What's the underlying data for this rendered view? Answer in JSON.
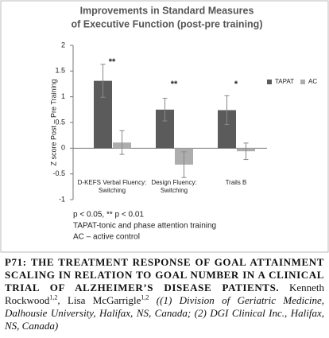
{
  "chart_data": {
    "type": "bar",
    "title": [
      "Improvements in Standard Measures",
      "of Executive Function (post-pre training)"
    ],
    "y_label": "Z score Post – Pre Training",
    "categories": [
      "D-KEFS Verbal Fluency: Switching",
      "Design Fluency: Switching",
      "Trails B"
    ],
    "series": [
      {
        "name": "TAPAT",
        "color": "#5b5b5b",
        "values": [
          1.31,
          0.75,
          0.74
        ],
        "errors": [
          0.32,
          0.22,
          0.28
        ]
      },
      {
        "name": "AC",
        "color": "#adadad",
        "values": [
          0.11,
          -0.32,
          -0.06
        ],
        "errors": [
          0.23,
          0.25,
          0.16
        ]
      }
    ],
    "annotations": [
      "**",
      "**",
      "*"
    ],
    "notes": [
      "p < 0.05, ** p < 0.01",
      "TAPAT-tonic and phase attention training",
      "AC – active control"
    ],
    "ylim": [
      -1,
      2
    ],
    "yticks": [
      -1,
      -0.5,
      0,
      0.5,
      1,
      1.5,
      2
    ],
    "grid": false,
    "legend": "top-right"
  },
  "caption": {
    "title": "P71: THE TREATMENT RESPONSE OF GOAL ATTAINMENT SCALING IN RELATION TO GOAL NUMBER IN A CLINICAL TRIAL OF ALZHEIMER’S DISEASE PATIENTS.",
    "authors": [
      {
        "name": "Kenneth Rockwood",
        "affil": "1,2"
      },
      {
        "name": "Lisa McGarrigle",
        "affil": "1,2"
      }
    ],
    "separator": ", ",
    "affiliations": "((1) Division of Geriatric Medicine, Dalhousie University, Halifax, NS, Canada; (2) DGI Clinical Inc., Halifax, NS, Canada)"
  }
}
